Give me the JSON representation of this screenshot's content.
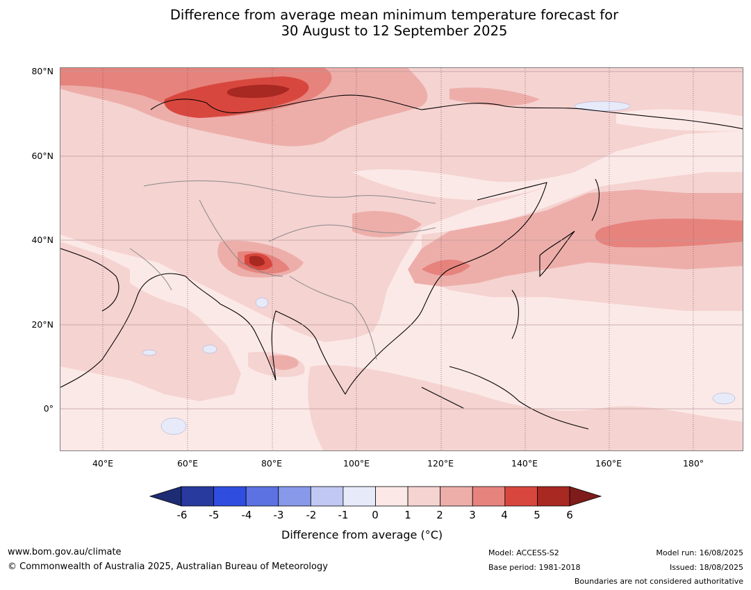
{
  "title": {
    "line1": "Difference from average mean minimum temperature forecast for",
    "line2": "30 August to 12 September 2025"
  },
  "map": {
    "lat_labels": [
      "80°N",
      "60°N",
      "40°N",
      "20°N",
      "0°"
    ],
    "lon_labels": [
      "40°E",
      "60°E",
      "80°E",
      "100°E",
      "120°E",
      "140°E",
      "160°E",
      "180°"
    ]
  },
  "colorbar": {
    "tick_labels": [
      "-6",
      "-5",
      "-4",
      "-3",
      "-2",
      "-1",
      "0",
      "1",
      "2",
      "3",
      "4",
      "5",
      "6"
    ],
    "colors": [
      "#283a9e",
      "#2f4ee0",
      "#5c72e3",
      "#8899ea",
      "#c0c8f3",
      "#e7eaf9",
      "#fce8e7",
      "#f5d3d1",
      "#edaeaa",
      "#e6837d",
      "#d8473e",
      "#a82822"
    ],
    "under_color": "#1e2c73",
    "over_color": "#7d1c1a",
    "label": "Difference from average (°C)"
  },
  "footer": {
    "website": "www.bom.gov.au/climate",
    "copyright": "© Commonwealth of Australia 2025, Australian Bureau of Meteorology",
    "model": "Model: ACCESS-S2",
    "base_period": "Base period: 1981-2018",
    "model_run": "Model run: 16/08/2025",
    "issued": "Issued: 18/08/2025",
    "disclaimer": "Boundaries are not considered authoritative"
  }
}
